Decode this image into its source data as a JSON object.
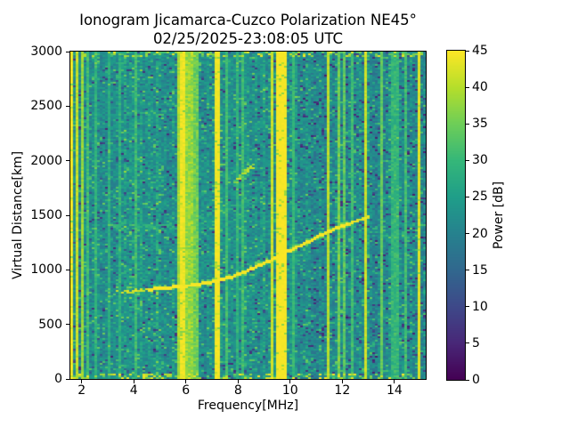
{
  "title": {
    "line1": "Ionogram Jicamarca-Cuzco Polarization NE45°",
    "line2": "02/25/2025-23:08:05 UTC"
  },
  "axes": {
    "xlabel": "Frequency[MHz]",
    "ylabel": "Virtual Distance[km]",
    "x_ticks": [
      2,
      4,
      6,
      8,
      10,
      12,
      14
    ],
    "y_ticks": [
      0,
      500,
      1000,
      1500,
      2000,
      2500,
      3000
    ],
    "x_range": [
      1.566,
      15.2
    ],
    "y_range": [
      0,
      3000
    ]
  },
  "colorbar": {
    "label": "Power [dB]",
    "ticks": [
      0,
      5,
      10,
      15,
      20,
      25,
      30,
      35,
      40,
      45
    ],
    "range": [
      0,
      45
    ],
    "colormap": "viridis",
    "viridis_stops": [
      "#440154",
      "#482878",
      "#3e4989",
      "#31688e",
      "#26828e",
      "#1f9e89",
      "#35b779",
      "#6ece58",
      "#b5de2b",
      "#fde725"
    ]
  },
  "chart_data": {
    "type": "heatmap",
    "title": "Ionogram Jicamarca-Cuzco Polarization NE45° / 02/25/2025-23:08:05 UTC",
    "xlabel": "Frequency[MHz]",
    "ylabel": "Virtual Distance[km]",
    "x_range_mhz": [
      1.566,
      15.2
    ],
    "y_range_km": [
      0,
      3000
    ],
    "power_range_db": [
      0,
      45
    ],
    "grid_cols": 133,
    "grid_rows": 184,
    "noise": {
      "background_db": [
        18.5,
        26.0
      ],
      "dark_speckle_db": [
        5,
        14
      ],
      "dark_speckle_prob": 0.055,
      "dark_speckle_prob_right": 0.085,
      "bright_speckle_db": [
        28,
        35
      ],
      "bright_speckle_prob": 0.085,
      "column_gain_db": [
        -1.2,
        1.8
      ],
      "hot_column_prob": 0.08,
      "hot_column_boost_db": 2.2,
      "right_side_dim_db": 1.3,
      "right_side_start_mhz": 10.25,
      "edge_band_km": 45,
      "edge_band_bright_prob": 0.3,
      "edge_band_db": [
        32,
        45
      ]
    },
    "rfi_stripes": [
      [
        1.63,
        0.1,
        45,
        2
      ],
      [
        1.78,
        0.1,
        43,
        4
      ],
      [
        2.0,
        0.09,
        40,
        4
      ],
      [
        2.26,
        0.07,
        33,
        4
      ],
      [
        2.55,
        0.06,
        31,
        4
      ],
      [
        2.8,
        0.06,
        32,
        5
      ],
      [
        3.05,
        0.06,
        30,
        4
      ],
      [
        3.45,
        0.07,
        31,
        5
      ],
      [
        4.1,
        0.07,
        33,
        5
      ],
      [
        4.55,
        0.06,
        30,
        4
      ],
      [
        4.85,
        0.08,
        36,
        5
      ],
      [
        5.35,
        0.06,
        31,
        4
      ],
      [
        5.68,
        0.1,
        41,
        4
      ],
      [
        5.92,
        0.2,
        45,
        2
      ],
      [
        6.15,
        0.25,
        41,
        6
      ],
      [
        6.38,
        0.15,
        38,
        6
      ],
      [
        6.68,
        0.07,
        36,
        5
      ],
      [
        7.22,
        0.18,
        45,
        1.5
      ],
      [
        7.55,
        0.06,
        33,
        4
      ],
      [
        7.95,
        0.06,
        31,
        4
      ],
      [
        8.18,
        0.06,
        33,
        5
      ],
      [
        9.05,
        0.08,
        38,
        4
      ],
      [
        9.3,
        0.14,
        43,
        3
      ],
      [
        9.68,
        0.4,
        45,
        1
      ],
      [
        10.15,
        0.06,
        32,
        4
      ],
      [
        10.6,
        0.06,
        31,
        5
      ],
      [
        11.45,
        0.08,
        42,
        3
      ],
      [
        11.7,
        0.07,
        37,
        5
      ],
      [
        11.88,
        0.07,
        38,
        5
      ],
      [
        12.05,
        0.07,
        36,
        5
      ],
      [
        12.4,
        0.08,
        33,
        4
      ],
      [
        12.92,
        0.09,
        43,
        3
      ],
      [
        13.55,
        0.1,
        36,
        4
      ],
      [
        14.05,
        0.35,
        32,
        5
      ],
      [
        14.45,
        0.07,
        33,
        4
      ],
      [
        14.93,
        0.1,
        44,
        2
      ],
      [
        15.1,
        0.08,
        33,
        4
      ]
    ],
    "echo_trace_main": {
      "points_mhz_km": [
        [
          3.3,
          795
        ],
        [
          3.7,
          800
        ],
        [
          4.2,
          810
        ],
        [
          4.7,
          822
        ],
        [
          5.2,
          835
        ],
        [
          5.7,
          845
        ],
        [
          6.2,
          858
        ],
        [
          6.7,
          875
        ],
        [
          7.2,
          900
        ],
        [
          7.7,
          930
        ],
        [
          8.2,
          975
        ],
        [
          8.7,
          1030
        ],
        [
          9.2,
          1080
        ],
        [
          9.7,
          1140
        ],
        [
          10.2,
          1200
        ],
        [
          10.7,
          1255
        ],
        [
          11.2,
          1320
        ],
        [
          11.7,
          1372
        ],
        [
          12.2,
          1420
        ],
        [
          12.7,
          1460
        ],
        [
          13.0,
          1480
        ]
      ],
      "power_db": 45,
      "halfwidth_km": 16,
      "dashed_below_mhz": 4.5
    },
    "echo_trace_second_hop": {
      "points_mhz_km": [
        [
          7.85,
          1790
        ],
        [
          8.3,
          1900
        ],
        [
          8.65,
          1960
        ]
      ],
      "power_db": [
        33,
        42
      ],
      "halfwidth_km": 22,
      "patchy": 0.75
    },
    "faint_band": {
      "freq_mhz": [
        3.2,
        6.0
      ],
      "km": 1390,
      "halfwidth_km": 25,
      "power_db": [
        27,
        30
      ],
      "patchy": 0.5
    },
    "faint_second_trace": {
      "points_mhz_km": [
        [
          6.3,
          1470
        ],
        [
          8.75,
          1645
        ]
      ],
      "halfwidth_km": 20,
      "power_db": [
        26.5,
        29
      ],
      "patchy": 0.45
    }
  }
}
